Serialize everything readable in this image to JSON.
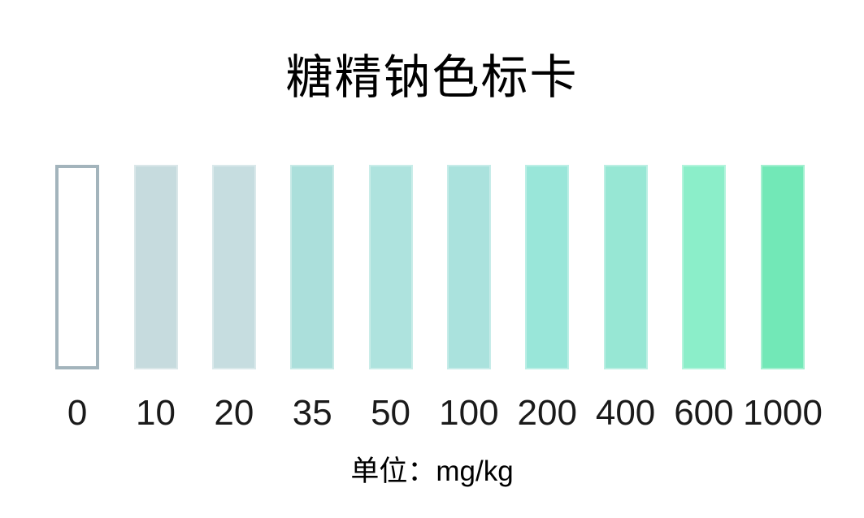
{
  "page": {
    "title": "糖精钠色标卡",
    "unit_label": "单位：mg/kg",
    "background_color": "#ffffff",
    "text_color": "#000000"
  },
  "chart_data": {
    "type": "heatmap",
    "title": "糖精钠色标卡",
    "description_visible_text_only": "colorimetric reference scale of 10 swatches",
    "categories": [
      "0",
      "10",
      "20",
      "35",
      "50",
      "100",
      "200",
      "400",
      "600",
      "1000"
    ],
    "colors": [
      "#ffffff",
      "#c6dbde",
      "#c6dde0",
      "#abdfdb",
      "#aee3de",
      "#aae2dd",
      "#99e6d9",
      "#97e7d4",
      "#8beec9",
      "#72e8b7"
    ],
    "outline_color_first_swatch": "#a3b4bc",
    "unit": "mg/kg",
    "xlabel": "单位：mg/kg",
    "legend_position": "none",
    "grid": false
  }
}
